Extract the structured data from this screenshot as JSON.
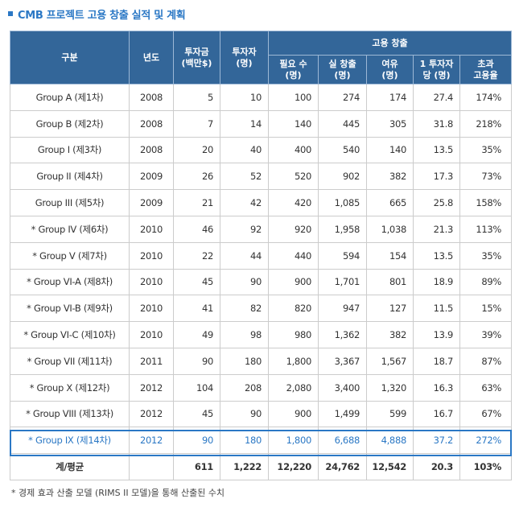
{
  "title": "CMB 프로젝트 고용 창출 실적 및 계획",
  "headers": {
    "category": "구분",
    "year": "년도",
    "investment": "투자금\n(백만$)",
    "investors": "투자자\n(명)",
    "employment": "고용 창출",
    "required": "필요 수\n(명)",
    "actual": "실 창출\n(명)",
    "surplus": "여유\n(명)",
    "per_investor": "1 투자자\n당 (명)",
    "excess_rate": "초과\n고용율"
  },
  "rows": [
    {
      "name": "Group A (제1차)",
      "year": "2008",
      "investment": "5",
      "investors": "10",
      "required": "100",
      "actual": "274",
      "surplus": "174",
      "per_investor": "27.4",
      "excess": "174%"
    },
    {
      "name": "Group B (제2차)",
      "year": "2008",
      "investment": "7",
      "investors": "14",
      "required": "140",
      "actual": "445",
      "surplus": "305",
      "per_investor": "31.8",
      "excess": "218%"
    },
    {
      "name": "Group I (제3차)",
      "year": "2008",
      "investment": "20",
      "investors": "40",
      "required": "400",
      "actual": "540",
      "surplus": "140",
      "per_investor": "13.5",
      "excess": "35%"
    },
    {
      "name": "Group II (제4차)",
      "year": "2009",
      "investment": "26",
      "investors": "52",
      "required": "520",
      "actual": "902",
      "surplus": "382",
      "per_investor": "17.3",
      "excess": "73%"
    },
    {
      "name": "Group III (제5차)",
      "year": "2009",
      "investment": "21",
      "investors": "42",
      "required": "420",
      "actual": "1,085",
      "surplus": "665",
      "per_investor": "25.8",
      "excess": "158%"
    },
    {
      "name": "* Group IV (제6차)",
      "year": "2010",
      "investment": "46",
      "investors": "92",
      "required": "920",
      "actual": "1,958",
      "surplus": "1,038",
      "per_investor": "21.3",
      "excess": "113%"
    },
    {
      "name": "* Group V (제7차)",
      "year": "2010",
      "investment": "22",
      "investors": "44",
      "required": "440",
      "actual": "594",
      "surplus": "154",
      "per_investor": "13.5",
      "excess": "35%"
    },
    {
      "name": "* Group VI-A (제8차)",
      "year": "2010",
      "investment": "45",
      "investors": "90",
      "required": "900",
      "actual": "1,701",
      "surplus": "801",
      "per_investor": "18.9",
      "excess": "89%"
    },
    {
      "name": "* Group VI-B (제9차)",
      "year": "2010",
      "investment": "41",
      "investors": "82",
      "required": "820",
      "actual": "947",
      "surplus": "127",
      "per_investor": "11.5",
      "excess": "15%"
    },
    {
      "name": "* Group VI-C (제10차)",
      "year": "2010",
      "investment": "49",
      "investors": "98",
      "required": "980",
      "actual": "1,362",
      "surplus": "382",
      "per_investor": "13.9",
      "excess": "39%"
    },
    {
      "name": "* Group VII (제11차)",
      "year": "2011",
      "investment": "90",
      "investors": "180",
      "required": "1,800",
      "actual": "3,367",
      "surplus": "1,567",
      "per_investor": "18.7",
      "excess": "87%"
    },
    {
      "name": "* Group X (제12차)",
      "year": "2012",
      "investment": "104",
      "investors": "208",
      "required": "2,080",
      "actual": "3,400",
      "surplus": "1,320",
      "per_investor": "16.3",
      "excess": "63%"
    },
    {
      "name": "* Group VIII (제13차)",
      "year": "2012",
      "investment": "45",
      "investors": "90",
      "required": "900",
      "actual": "1,499",
      "surplus": "599",
      "per_investor": "16.7",
      "excess": "67%"
    },
    {
      "name": "* Group IX (제14차)",
      "year": "2012",
      "investment": "90",
      "investors": "180",
      "required": "1,800",
      "actual": "6,688",
      "surplus": "4,888",
      "per_investor": "37.2",
      "excess": "272%",
      "highlight": true
    }
  ],
  "total": {
    "label": "계/평균",
    "year": "",
    "investment": "611",
    "investors": "1,222",
    "required": "12,220",
    "actual": "24,762",
    "surplus": "12,542",
    "per_investor": "20.3",
    "excess": "103%"
  },
  "footnote": "* 경제 효과 산출 모델 (RIMS II 모델)을 통해 산출된 수치",
  "colors": {
    "accent": "#2b78c5",
    "header_bg": "#336699",
    "border": "#cccccc"
  }
}
